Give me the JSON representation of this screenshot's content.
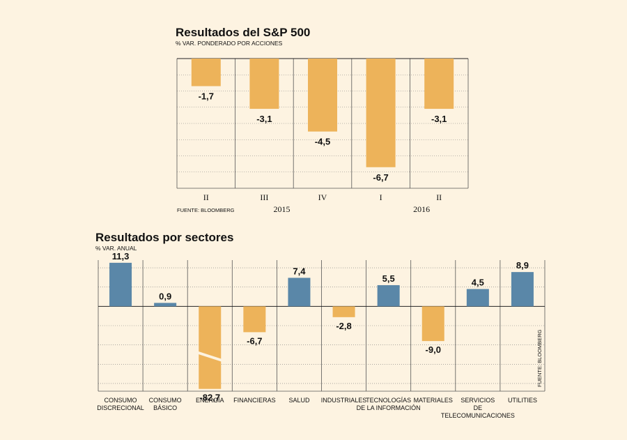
{
  "chart_data": [
    {
      "type": "bar",
      "title": "Resultados del S&P 500",
      "subtitle": "% VAR. PONDERADO POR ACCIONES",
      "categories": [
        "II",
        "III",
        "IV",
        "I",
        "II"
      ],
      "values": [
        -1.7,
        -3.1,
        -4.5,
        -6.7,
        -3.1
      ],
      "value_labels": [
        "-1,7",
        "-3,1",
        "-4,5",
        "-6,7",
        "-3,1"
      ],
      "year_labels": [
        "2015",
        "2016"
      ],
      "ylim": [
        -8,
        0
      ],
      "source": "FUENTE: BLOOMBERG",
      "grid": true
    },
    {
      "type": "bar",
      "title": "Resultados por sectores",
      "subtitle": "% VAR. ANUAL",
      "categories": [
        [
          "CONSUMO",
          "DISCRECIONAL"
        ],
        [
          "CONSUMO",
          "BÁSICO"
        ],
        [
          "ENERGÍA"
        ],
        [
          "FINANCIERAS"
        ],
        [
          "SALUD"
        ],
        [
          "INDUSTRIALES"
        ],
        [
          "TECNOLOGÍAS",
          "DE LA INFORMACIÓN"
        ],
        [
          "MATERIALES"
        ],
        [
          "SERVICIOS",
          "DE",
          "TELECOMUNICACIONES"
        ],
        [
          "UTILITIES"
        ]
      ],
      "values": [
        11.3,
        0.9,
        -82.7,
        -6.7,
        7.4,
        -2.8,
        5.5,
        -9.0,
        4.5,
        8.9
      ],
      "value_labels": [
        "11,3",
        "0,9",
        "-82,7",
        "-6,7",
        "7,4",
        "-2,8",
        "5,5",
        "-9,0",
        "4,5",
        "8,9"
      ],
      "ylim": [
        -22,
        12
      ],
      "axis_break_on": "ENERGÍA",
      "source": "FUENTE: BLOOMBERG",
      "grid": true
    }
  ],
  "colors": {
    "negative": "#edb35a",
    "positive": "#5a87a8",
    "background": "#fdf3e1",
    "grid": "#777777"
  }
}
